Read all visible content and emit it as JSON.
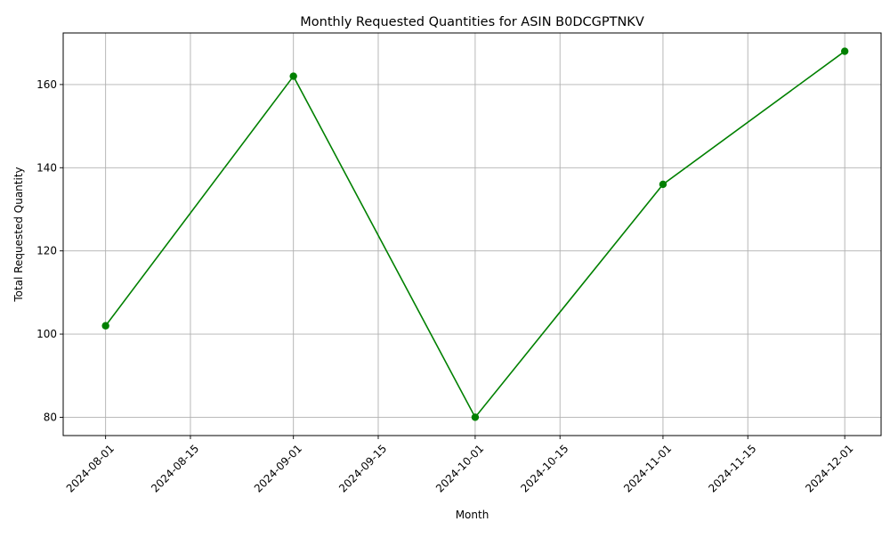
{
  "chart_data": {
    "type": "line",
    "title": "Monthly Requested Quantities for ASIN B0DCGPTNKV",
    "xlabel": "Month",
    "ylabel": "Total Requested Quantity",
    "x": [
      "2024-08-01",
      "2024-09-01",
      "2024-10-01",
      "2024-11-01",
      "2024-12-01"
    ],
    "series": [
      {
        "values": [
          102,
          162,
          80,
          136,
          168
        ],
        "color": "#008000",
        "marker": "circle"
      }
    ],
    "x_ticks": [
      "2024-08-01",
      "2024-08-15",
      "2024-09-01",
      "2024-09-15",
      "2024-10-01",
      "2024-10-15",
      "2024-11-01",
      "2024-11-15",
      "2024-12-01"
    ],
    "y_ticks": [
      80,
      100,
      120,
      140,
      160
    ],
    "ylim": [
      75.6,
      172.4
    ],
    "xlim": [
      "2024-07-25",
      "2024-12-07"
    ],
    "grid": true,
    "x_tick_rotation": 45
  }
}
